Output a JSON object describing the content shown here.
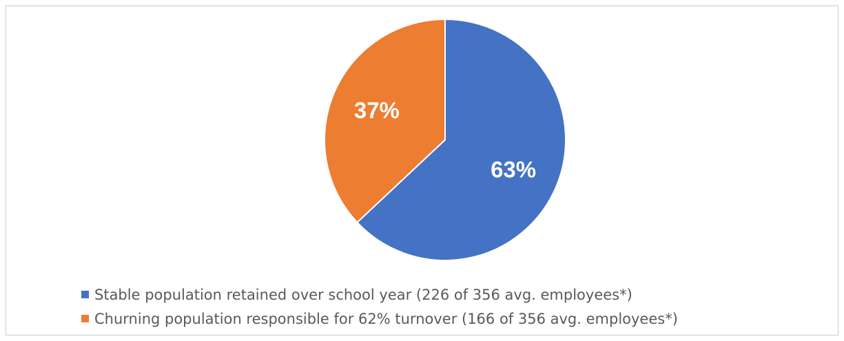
{
  "chart_data": {
    "type": "pie",
    "title": "",
    "series": [
      {
        "name": "Stable population retained over school year (226 of 356 avg. employees*)",
        "value": 63,
        "label": "63%",
        "color": "#4472c4"
      },
      {
        "name": "Churning population responsible for 62% turnover (166 of 356 avg. employees*)",
        "value": 37,
        "label": "37%",
        "color": "#ed7d31"
      }
    ],
    "start_angle_deg": 0,
    "direction": "clockwise",
    "legend_position": "bottom"
  }
}
